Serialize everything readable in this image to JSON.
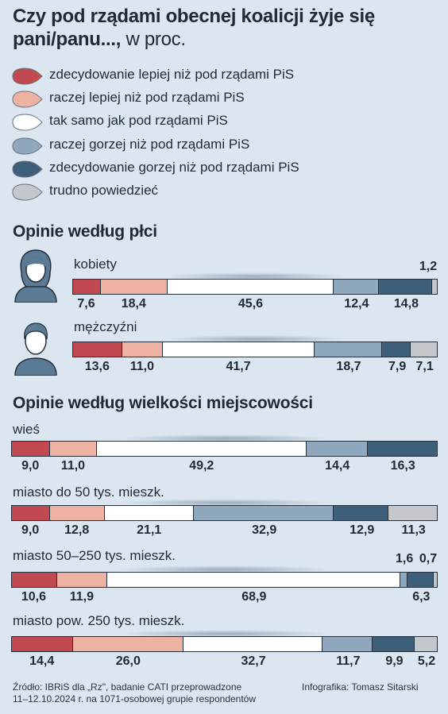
{
  "title": "Czy pod rządami obecnej koalicji żyje się pani/panu...,",
  "title_unit": "w proc.",
  "legend": [
    {
      "label": "zdecydowanie lepiej niż pod rządami PiS",
      "color": "#c04a4f"
    },
    {
      "label": "raczej lepiej niż pod rządami PiS",
      "color": "#eeb2a3"
    },
    {
      "label": "tak samo jak pod  rządami PiS",
      "color": "#ffffff"
    },
    {
      "label": "raczej gorzej niż pod rządami PiS",
      "color": "#8fa8bd"
    },
    {
      "label": "zdecydowanie gorzej niż pod rządami PiS",
      "color": "#3e5f79"
    },
    {
      "label": "trudno powiedzieć",
      "color": "#c4c8cb"
    }
  ],
  "chart_data": [
    {
      "type": "bar",
      "stacked": true,
      "orientation": "horizontal",
      "title": "Opinie według płci",
      "categories": [
        "kobiety",
        "mężczyźni"
      ],
      "series": [
        {
          "name": "zdecydowanie lepiej niż pod rządami PiS",
          "values": [
            7.6,
            13.6
          ]
        },
        {
          "name": "raczej lepiej niż pod rządami PiS",
          "values": [
            18.4,
            11.0
          ]
        },
        {
          "name": "tak samo jak pod  rządami PiS",
          "values": [
            45.6,
            41.7
          ]
        },
        {
          "name": "raczej gorzej niż pod rządami PiS",
          "values": [
            12.4,
            18.7
          ]
        },
        {
          "name": "zdecydowanie gorzej niż pod rządami PiS",
          "values": [
            14.8,
            7.9
          ]
        },
        {
          "name": "trudno powiedzieć",
          "values": [
            1.2,
            7.1
          ]
        }
      ],
      "labels": [
        [
          "7,6",
          "18,4",
          "45,6",
          "12,4",
          "14,8",
          "1,2"
        ],
        [
          "13,6",
          "11,0",
          "41,7",
          "18,7",
          "7,9",
          "7,1"
        ]
      ]
    },
    {
      "type": "bar",
      "stacked": true,
      "orientation": "horizontal",
      "title": "Opinie według wielkości miejscowości",
      "categories": [
        "wieś",
        "miasto do 50 tys. mieszk.",
        "miasto 50–250 tys. mieszk.",
        "miasto pow. 250 tys. mieszk."
      ],
      "series": [
        {
          "name": "zdecydowanie lepiej niż pod rządami PiS",
          "values": [
            9.0,
            9.0,
            10.6,
            14.4
          ]
        },
        {
          "name": "raczej lepiej niż pod rządami PiS",
          "values": [
            11.0,
            12.8,
            11.9,
            26.0
          ]
        },
        {
          "name": "tak samo jak pod  rządami PiS",
          "values": [
            49.2,
            21.1,
            68.9,
            32.7
          ]
        },
        {
          "name": "raczej gorzej niż pod rządami PiS",
          "values": [
            14.4,
            32.9,
            1.6,
            11.7
          ]
        },
        {
          "name": "zdecydowanie gorzej niż pod rządami PiS",
          "values": [
            16.3,
            12.9,
            6.3,
            9.9
          ]
        },
        {
          "name": "trudno powiedzieć",
          "values": [
            0,
            11.3,
            0.7,
            5.2
          ]
        }
      ],
      "labels": [
        [
          "9,0",
          "11,0",
          "49,2",
          "14,4",
          "16,3",
          ""
        ],
        [
          "9,0",
          "12,8",
          "21,1",
          "32,9",
          "12,9",
          "11,3"
        ],
        [
          "10,6",
          "11,9",
          "68,9",
          "1,6",
          "6,3",
          "0,7"
        ],
        [
          "14,4",
          "26,0",
          "32,7",
          "11,7",
          "9,9",
          "5,2"
        ]
      ]
    }
  ],
  "source": "Źródło: IBRiS dla „Rz\", badanie CATI przeprowadzone\n11–12.10.2024 r. na 1071-osobowej grupie respondentów",
  "credit": "Infografika: Tomasz Sitarski"
}
